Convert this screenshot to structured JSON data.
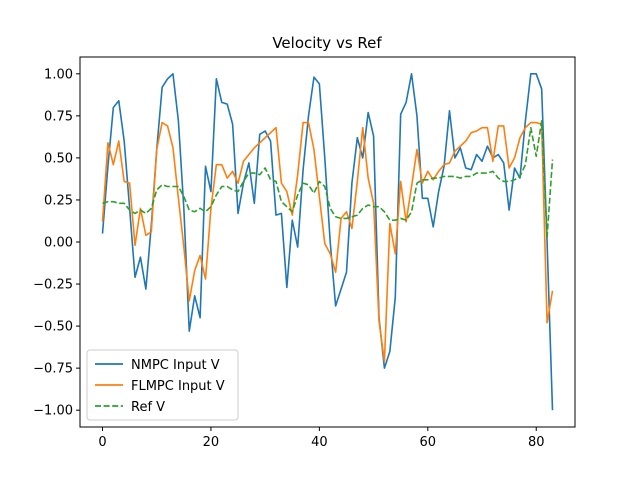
{
  "chart_data": {
    "type": "line",
    "title": "Velocity vs Ref",
    "xlabel": "",
    "ylabel": "",
    "xlim": [
      -4.15,
      87.15
    ],
    "ylim": [
      -1.1,
      1.1
    ],
    "xticks": [
      0,
      20,
      40,
      60,
      80
    ],
    "xtick_labels": [
      "0",
      "20",
      "40",
      "60",
      "80"
    ],
    "yticks": [
      -1.0,
      -0.75,
      -0.5,
      -0.25,
      0.0,
      0.25,
      0.5,
      0.75,
      1.0
    ],
    "ytick_labels": [
      "−1.00",
      "−0.75",
      "−0.50",
      "−0.25",
      "0.00",
      "0.25",
      "0.50",
      "0.75",
      "1.00"
    ],
    "grid": false,
    "legend_position": "lower-left",
    "series": [
      {
        "name": "NMPC Input V",
        "color": "#1f77b4",
        "dash": "solid",
        "values": [
          0.05,
          0.45,
          0.8,
          0.84,
          0.6,
          0.2,
          -0.21,
          -0.09,
          -0.28,
          0.1,
          0.55,
          0.92,
          0.97,
          1.0,
          0.72,
          0.2,
          -0.53,
          -0.32,
          -0.45,
          0.45,
          0.3,
          0.97,
          0.83,
          0.82,
          0.7,
          0.17,
          0.35,
          0.47,
          0.23,
          0.64,
          0.66,
          0.6,
          0.16,
          0.17,
          -0.27,
          0.13,
          -0.03,
          0.43,
          0.75,
          0.98,
          0.94,
          0.5,
          0.0,
          -0.38,
          -0.28,
          -0.18,
          0.35,
          0.62,
          0.5,
          0.77,
          0.63,
          -0.45,
          -0.75,
          -0.65,
          -0.33,
          0.76,
          0.83,
          1.0,
          0.75,
          0.26,
          0.26,
          0.09,
          0.3,
          0.45,
          0.78,
          0.5,
          0.56,
          0.44,
          0.43,
          0.52,
          0.48,
          0.57,
          0.5,
          0.52,
          0.47,
          0.19,
          0.44,
          0.38,
          0.72,
          1.0,
          1.0,
          0.91,
          0.0,
          -1.0
        ]
      },
      {
        "name": "FLMPC Input V",
        "color": "#ff7f0e",
        "dash": "solid",
        "values": [
          0.12,
          0.59,
          0.46,
          0.6,
          0.36,
          0.35,
          -0.02,
          0.2,
          0.04,
          0.06,
          0.55,
          0.71,
          0.69,
          0.56,
          0.26,
          -0.03,
          -0.35,
          -0.17,
          -0.08,
          -0.22,
          0.2,
          0.46,
          0.46,
          0.38,
          0.42,
          0.35,
          0.48,
          0.52,
          0.56,
          0.59,
          0.62,
          0.65,
          0.68,
          0.35,
          0.3,
          0.16,
          0.4,
          0.71,
          0.71,
          0.55,
          0.27,
          -0.01,
          -0.07,
          -0.18,
          0.14,
          0.18,
          0.08,
          0.36,
          0.68,
          0.38,
          0.23,
          -0.47,
          -0.71,
          0.11,
          -0.07,
          0.36,
          0.12,
          0.33,
          0.55,
          0.35,
          0.42,
          0.37,
          0.42,
          0.46,
          0.47,
          0.54,
          0.57,
          0.6,
          0.65,
          0.66,
          0.68,
          0.68,
          0.48,
          0.69,
          0.69,
          0.44,
          0.5,
          0.62,
          0.68,
          0.71,
          0.71,
          0.7,
          -0.48,
          -0.29
        ]
      },
      {
        "name": "Ref V",
        "color": "#2ca02c",
        "dash": "dashed",
        "values": [
          0.23,
          0.24,
          0.24,
          0.23,
          0.23,
          0.19,
          0.17,
          0.19,
          0.17,
          0.2,
          0.31,
          0.34,
          0.33,
          0.33,
          0.33,
          0.27,
          0.19,
          0.18,
          0.2,
          0.18,
          0.21,
          0.28,
          0.33,
          0.33,
          0.31,
          0.3,
          0.36,
          0.41,
          0.41,
          0.4,
          0.44,
          0.37,
          0.36,
          0.24,
          0.21,
          0.18,
          0.28,
          0.35,
          0.34,
          0.29,
          0.36,
          0.33,
          0.2,
          0.15,
          0.14,
          0.14,
          0.15,
          0.16,
          0.2,
          0.22,
          0.21,
          0.21,
          0.18,
          0.13,
          0.13,
          0.14,
          0.13,
          0.18,
          0.35,
          0.37,
          0.37,
          0.38,
          0.38,
          0.39,
          0.39,
          0.39,
          0.38,
          0.39,
          0.39,
          0.41,
          0.41,
          0.41,
          0.42,
          0.38,
          0.36,
          0.36,
          0.37,
          0.39,
          0.46,
          0.68,
          0.51,
          0.72,
          0.03,
          0.49
        ]
      }
    ]
  }
}
